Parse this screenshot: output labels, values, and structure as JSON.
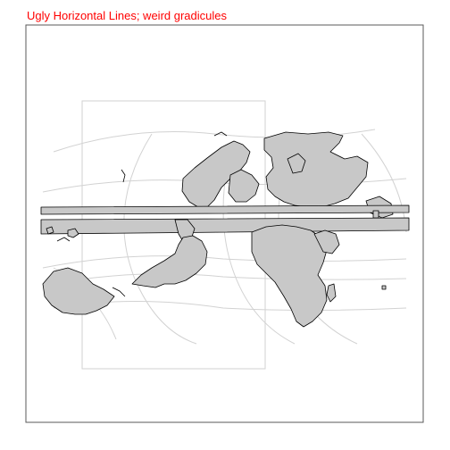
{
  "title": "Ugly Horizontal Lines; weird gradicules",
  "colors": {
    "title": "#ff0000",
    "panel_border": "#5a5a5a",
    "land_fill": "#c8c8c8",
    "land_stroke": "#000000",
    "graticule": "#d2d2d2"
  }
}
